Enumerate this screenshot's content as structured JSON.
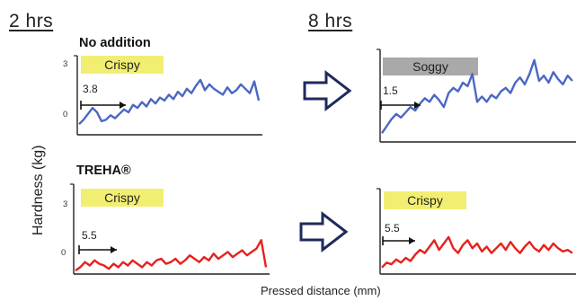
{
  "time_labels": {
    "left": "2 hrs",
    "right": "8 hrs"
  },
  "y_axis_title": "Hardness  (kg)",
  "x_axis_title": "Pressed distance (mm)",
  "colors": {
    "no_addition": "#4a67c4",
    "treha": "#e8201c",
    "crispy_tag": "#f2ee72",
    "soggy_tag": "#a9a9a9",
    "arrow": "#1e2a5e"
  },
  "chart_data": [
    {
      "type": "line",
      "panel": "top-left",
      "condition": "No addition",
      "time": "2 hrs",
      "label": "Crispy",
      "peak_distance": "3.8",
      "yticks": [
        "3",
        "0"
      ],
      "x": [
        0,
        1,
        2,
        3,
        4,
        5,
        6,
        7,
        8,
        9,
        10,
        11,
        12,
        13,
        14,
        15,
        16,
        17,
        18,
        19,
        20,
        21,
        22,
        23,
        24,
        25,
        26,
        27,
        28,
        29,
        30,
        31,
        32,
        33,
        34,
        35,
        36,
        37,
        38,
        39,
        40
      ],
      "values": [
        -0.4,
        -0.1,
        0.3,
        0.7,
        0.4,
        -0.2,
        -0.1,
        0.2,
        0.0,
        0.3,
        0.6,
        0.4,
        0.9,
        0.7,
        1.1,
        0.8,
        1.3,
        1.0,
        1.4,
        1.2,
        1.6,
        1.3,
        1.8,
        1.5,
        2.0,
        1.7,
        2.2,
        2.6,
        1.9,
        2.3,
        2.0,
        1.8,
        1.6,
        2.1,
        1.7,
        1.9,
        2.3,
        2.0,
        1.7,
        2.5,
        1.2
      ]
    },
    {
      "type": "line",
      "panel": "top-right",
      "condition": "No addition",
      "time": "8 hrs",
      "label": "Soggy",
      "peak_distance": "1.5",
      "yticks": [],
      "x": [
        0,
        1,
        2,
        3,
        4,
        5,
        6,
        7,
        8,
        9,
        10,
        11,
        12,
        13,
        14,
        15,
        16,
        17,
        18,
        19,
        20,
        21,
        22,
        23,
        24,
        25,
        26,
        27,
        28,
        29,
        30,
        31,
        32,
        33,
        34,
        35,
        36,
        37,
        38,
        39,
        40
      ],
      "values": [
        -0.6,
        -0.2,
        0.2,
        0.5,
        0.3,
        0.6,
        0.9,
        0.7,
        1.1,
        1.4,
        1.2,
        1.6,
        1.3,
        0.9,
        1.7,
        2.0,
        1.8,
        2.3,
        2.1,
        2.8,
        1.2,
        1.5,
        1.2,
        1.6,
        1.4,
        1.8,
        2.0,
        1.7,
        2.3,
        2.6,
        2.2,
        2.8,
        3.6,
        2.4,
        2.7,
        2.3,
        2.9,
        2.5,
        2.2,
        2.7,
        2.4
      ]
    },
    {
      "type": "line",
      "panel": "bottom-left",
      "condition": "TREHA®",
      "time": "2 hrs",
      "label": "Crispy",
      "peak_distance": "5.5",
      "yticks": [
        "3",
        "0"
      ],
      "x": [
        0,
        1,
        2,
        3,
        4,
        5,
        6,
        7,
        8,
        9,
        10,
        11,
        12,
        13,
        14,
        15,
        16,
        17,
        18,
        19,
        20,
        21,
        22,
        23,
        24,
        25,
        26,
        27,
        28,
        29,
        30,
        31,
        32,
        33,
        34,
        35,
        36,
        37,
        38,
        39,
        40
      ],
      "values": [
        -0.9,
        -0.7,
        -0.4,
        -0.6,
        -0.3,
        -0.5,
        -0.6,
        -0.8,
        -0.5,
        -0.7,
        -0.4,
        -0.6,
        -0.3,
        -0.5,
        -0.7,
        -0.4,
        -0.6,
        -0.3,
        -0.2,
        -0.5,
        -0.4,
        -0.2,
        -0.5,
        -0.3,
        0.0,
        -0.2,
        -0.4,
        -0.1,
        -0.3,
        0.1,
        -0.2,
        0.0,
        0.2,
        -0.1,
        0.1,
        0.3,
        0.0,
        0.2,
        0.4,
        0.9,
        -0.7
      ]
    },
    {
      "type": "line",
      "panel": "bottom-right",
      "condition": "TREHA®",
      "time": "8 hrs",
      "label": "Crispy",
      "peak_distance": "5.5",
      "yticks": [],
      "x": [
        0,
        1,
        2,
        3,
        4,
        5,
        6,
        7,
        8,
        9,
        10,
        11,
        12,
        13,
        14,
        15,
        16,
        17,
        18,
        19,
        20,
        21,
        22,
        23,
        24,
        25,
        26,
        27,
        28,
        29,
        30,
        31,
        32,
        33,
        34,
        35,
        36,
        37,
        38,
        39,
        40
      ],
      "values": [
        -0.7,
        -0.4,
        -0.5,
        -0.2,
        -0.4,
        -0.1,
        -0.3,
        0.1,
        0.4,
        0.2,
        0.6,
        1.0,
        0.4,
        0.8,
        1.2,
        0.5,
        0.2,
        0.7,
        1.0,
        0.5,
        0.8,
        0.3,
        0.6,
        0.2,
        0.5,
        0.8,
        0.4,
        0.9,
        0.5,
        0.2,
        0.6,
        0.9,
        0.5,
        0.3,
        0.7,
        0.4,
        0.8,
        0.5,
        0.3,
        0.4,
        0.2
      ]
    }
  ]
}
